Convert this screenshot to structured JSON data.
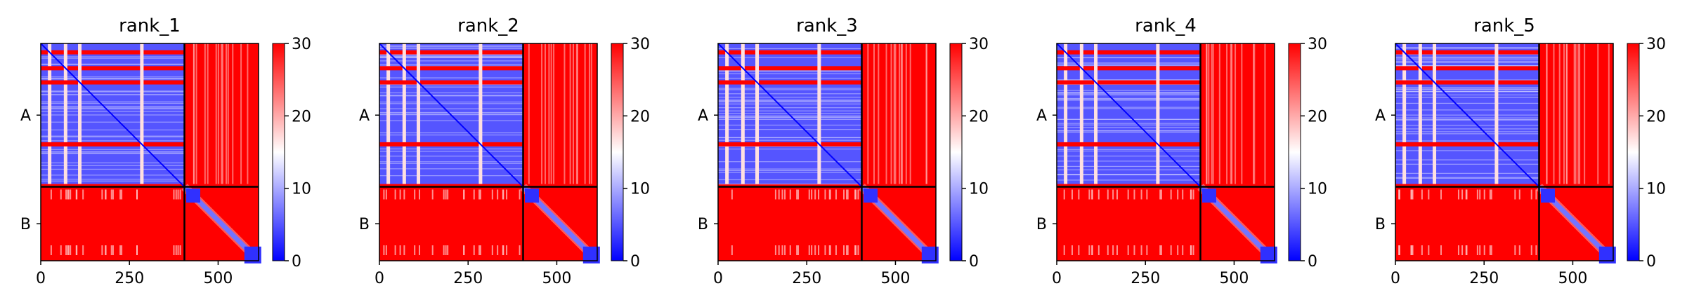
{
  "chart_data": {
    "type": "heatmap",
    "colormap": {
      "name": "bwr",
      "colors": [
        "#0000ff",
        "#ffffff",
        "#ff0000"
      ],
      "vmin": 0,
      "vmax": 30
    },
    "chains": [
      {
        "label": "A",
        "start": 0,
        "end": 405
      },
      {
        "label": "B",
        "start": 405,
        "end": 614
      }
    ],
    "xlim": [
      0,
      614
    ],
    "x_ticks": [
      {
        "value": 0,
        "label": "0"
      },
      {
        "value": 250,
        "label": "250"
      },
      {
        "value": 500,
        "label": "500"
      }
    ],
    "colorbar_ticks": [
      {
        "value": 0,
        "label": "0"
      },
      {
        "value": 10,
        "label": "10"
      },
      {
        "value": 20,
        "label": "20"
      },
      {
        "value": 30,
        "label": "30"
      }
    ],
    "panels": [
      {
        "title": "rank_1",
        "block_AA": {
          "mean": 5,
          "hot_rows": [
            25,
            70,
            110,
            285
          ]
        },
        "block_BB": {
          "mean": 3,
          "diagonal": true
        },
        "block_AB": 30,
        "block_BA": 30
      },
      {
        "title": "rank_2",
        "block_AA": {
          "mean": 5,
          "hot_rows": [
            25,
            70,
            110,
            285
          ]
        },
        "block_BB": {
          "mean": 3,
          "diagonal": true
        },
        "block_AB": 30,
        "block_BA": 30
      },
      {
        "title": "rank_3",
        "block_AA": {
          "mean": 5,
          "hot_rows": [
            25,
            70,
            110,
            285
          ]
        },
        "block_BB": {
          "mean": 3,
          "diagonal": true
        },
        "block_AB": 30,
        "block_BA": 30
      },
      {
        "title": "rank_4",
        "block_AA": {
          "mean": 5,
          "hot_rows": [
            25,
            70,
            110,
            285
          ]
        },
        "block_BB": {
          "mean": 3,
          "diagonal": true
        },
        "block_AB": 30,
        "block_BA": 30
      },
      {
        "title": "rank_5",
        "block_AA": {
          "mean": 5,
          "hot_rows": [
            25,
            70,
            110,
            285
          ]
        },
        "block_BB": {
          "mean": 3,
          "diagonal": true
        },
        "block_AB": 30,
        "block_BA": 30
      }
    ]
  }
}
